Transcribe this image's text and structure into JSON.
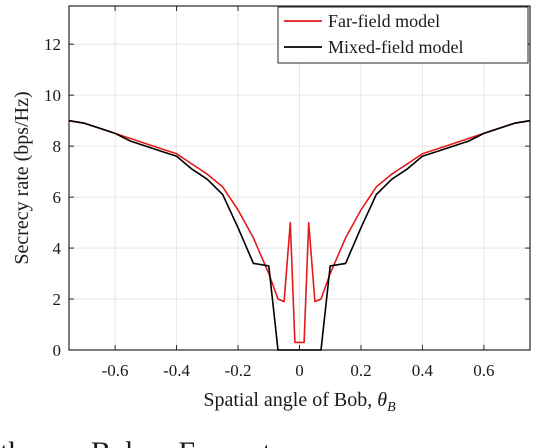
{
  "chart_data": {
    "type": "line",
    "title": "",
    "xlabel": "Spatial angle of Bob, θ_B",
    "xlabel_parts": {
      "text": "Spatial angle of Bob, ",
      "symbol": "θ",
      "subscript": "B"
    },
    "ylabel": "Secrecy rate (bps/Hz)",
    "xlim": [
      -0.75,
      0.75
    ],
    "ylim": [
      0,
      13.5
    ],
    "xticks": [
      -0.6,
      -0.4,
      -0.2,
      0,
      0.2,
      0.4,
      0.6
    ],
    "xtick_labels": [
      "-0.6",
      "-0.4",
      "-0.2",
      "0",
      "0.2",
      "0.4",
      "0.6"
    ],
    "yticks": [
      0,
      2,
      4,
      6,
      8,
      10,
      12
    ],
    "ytick_labels": [
      "0",
      "2",
      "4",
      "6",
      "8",
      "10",
      "12"
    ],
    "grid": true,
    "legend_position": "top-right",
    "series": [
      {
        "name": "Far-field model",
        "color": "#e41a1c",
        "x": [
          -0.75,
          -0.7,
          -0.65,
          -0.6,
          -0.55,
          -0.5,
          -0.45,
          -0.4,
          -0.35,
          -0.3,
          -0.25,
          -0.2,
          -0.15,
          -0.1,
          -0.07,
          -0.05,
          -0.03,
          -0.015,
          0,
          0.015,
          0.03,
          0.05,
          0.07,
          0.1,
          0.15,
          0.2,
          0.25,
          0.3,
          0.35,
          0.4,
          0.45,
          0.5,
          0.55,
          0.6,
          0.65,
          0.7,
          0.75
        ],
        "y": [
          9.0,
          8.9,
          8.7,
          8.5,
          8.3,
          8.1,
          7.9,
          7.7,
          7.3,
          6.9,
          6.4,
          5.5,
          4.4,
          3.0,
          2.0,
          1.9,
          5.0,
          0.3,
          0.3,
          0.3,
          5.0,
          1.9,
          2.0,
          3.0,
          4.4,
          5.5,
          6.4,
          6.9,
          7.3,
          7.7,
          7.9,
          8.1,
          8.3,
          8.5,
          8.7,
          8.9,
          9.0
        ]
      },
      {
        "name": "Mixed-field model",
        "color": "#000000",
        "x": [
          -0.75,
          -0.7,
          -0.65,
          -0.6,
          -0.55,
          -0.5,
          -0.45,
          -0.4,
          -0.35,
          -0.3,
          -0.25,
          -0.2,
          -0.15,
          -0.1,
          -0.07,
          0,
          0.07,
          0.1,
          0.15,
          0.2,
          0.25,
          0.3,
          0.35,
          0.4,
          0.45,
          0.5,
          0.55,
          0.6,
          0.65,
          0.7,
          0.75
        ],
        "y": [
          9.0,
          8.9,
          8.7,
          8.5,
          8.2,
          8.0,
          7.8,
          7.6,
          7.1,
          6.7,
          6.1,
          4.8,
          3.4,
          3.3,
          0.0,
          0.0,
          0.0,
          3.3,
          3.4,
          4.8,
          6.1,
          6.7,
          7.1,
          7.6,
          7.8,
          8.0,
          8.2,
          8.5,
          8.7,
          8.9,
          9.0
        ]
      }
    ]
  },
  "caption_fragment": "th         Bob     F         t"
}
